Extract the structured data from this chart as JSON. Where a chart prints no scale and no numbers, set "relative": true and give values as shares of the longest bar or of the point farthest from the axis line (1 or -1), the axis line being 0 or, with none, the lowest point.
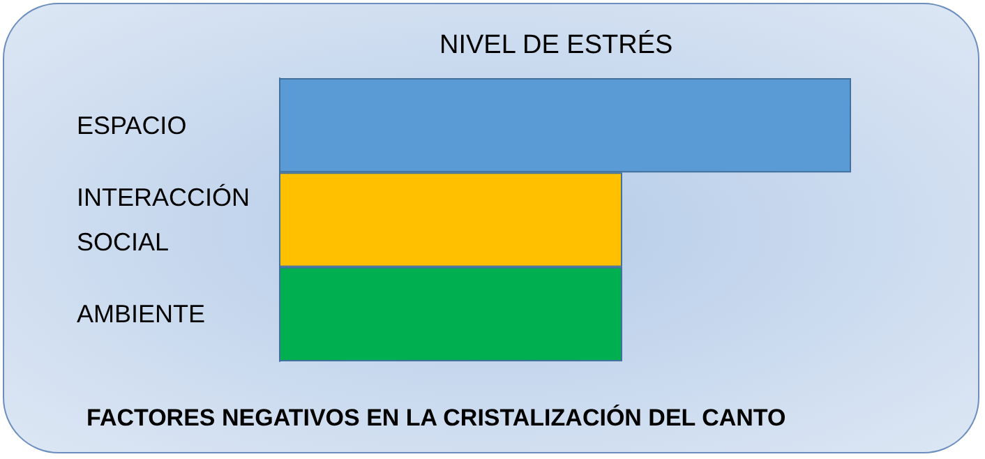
{
  "chart_data": {
    "type": "bar",
    "orientation": "horizontal",
    "relative": true,
    "title": "FACTORES NEGATIVOS EN LA CRISTALIZACIÓN DEL CANTO",
    "xlabel": "NIVEL DE ESTRÉS",
    "categories": [
      "ESPACIO",
      "INTERACCIÓN SOCIAL",
      "AMBIENTE"
    ],
    "values": [
      1,
      0.6,
      0.6
    ],
    "colors": [
      "#5b9bd5",
      "#ffc000",
      "#00b050"
    ]
  }
}
